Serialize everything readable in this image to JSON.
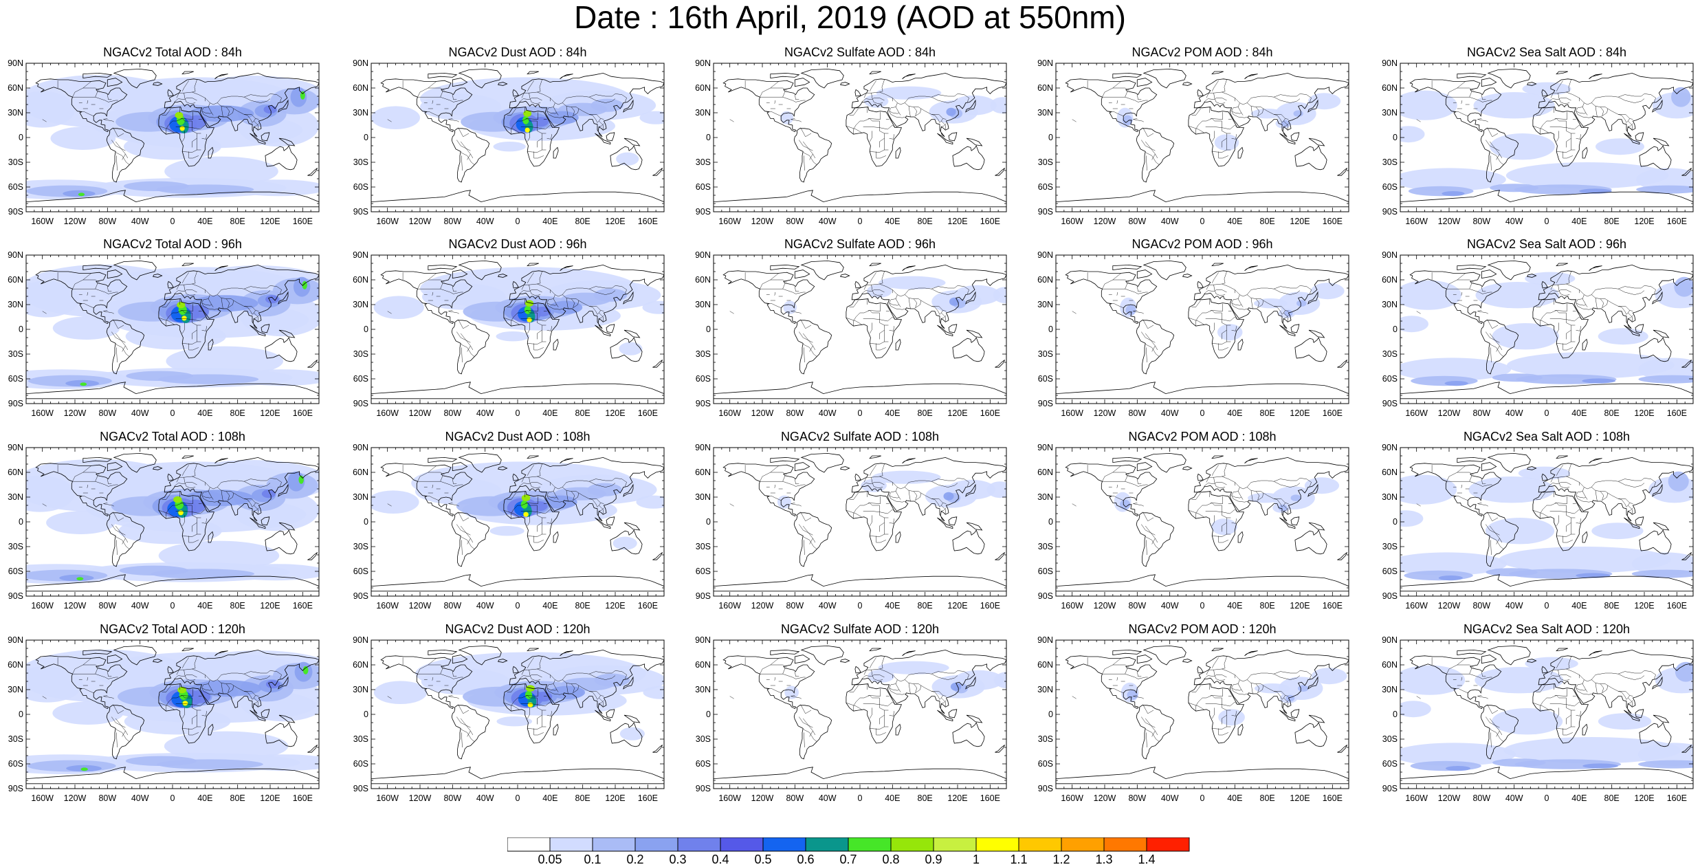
{
  "title": "Date : 16th April, 2019 (AOD at 550nm)",
  "panels": [
    {
      "title": "NGACv2 Total AOD : 84h",
      "species": "total"
    },
    {
      "title": "NGACv2 Dust AOD : 84h",
      "species": "dust"
    },
    {
      "title": "NGACv2 Sulfate AOD : 84h",
      "species": "sulfate"
    },
    {
      "title": "NGACv2 POM AOD : 84h",
      "species": "pom"
    },
    {
      "title": "NGACv2 Sea Salt AOD : 84h",
      "species": "seasalt"
    },
    {
      "title": "NGACv2 Total AOD : 96h",
      "species": "total"
    },
    {
      "title": "NGACv2 Dust AOD : 96h",
      "species": "dust"
    },
    {
      "title": "NGACv2 Sulfate AOD : 96h",
      "species": "sulfate"
    },
    {
      "title": "NGACv2 POM AOD : 96h",
      "species": "pom"
    },
    {
      "title": "NGACv2 Sea Salt AOD : 96h",
      "species": "seasalt"
    },
    {
      "title": "NGACv2 Total AOD : 108h",
      "species": "total"
    },
    {
      "title": "NGACv2 Dust AOD : 108h",
      "species": "dust"
    },
    {
      "title": "NGACv2 Sulfate AOD : 108h",
      "species": "sulfate"
    },
    {
      "title": "NGACv2 POM AOD : 108h",
      "species": "pom"
    },
    {
      "title": "NGACv2 Sea Salt AOD : 108h",
      "species": "seasalt"
    },
    {
      "title": "NGACv2 Total AOD : 120h",
      "species": "total"
    },
    {
      "title": "NGACv2 Dust AOD : 120h",
      "species": "dust"
    },
    {
      "title": "NGACv2 Sulfate AOD : 120h",
      "species": "sulfate"
    },
    {
      "title": "NGACv2 POM AOD : 120h",
      "species": "pom"
    },
    {
      "title": "NGACv2 Sea Salt  AOD : 120h",
      "species": "seasalt"
    }
  ],
  "lat_ticks": [
    "90N",
    "60N",
    "30N",
    "0",
    "30S",
    "60S",
    "90S"
  ],
  "lon_ticks": [
    "160W",
    "120W",
    "80W",
    "40W",
    "0",
    "40E",
    "80E",
    "120E",
    "160E"
  ],
  "lon_tick_values": [
    -160,
    -120,
    -80,
    -40,
    0,
    40,
    80,
    120,
    160
  ],
  "lat_tick_values": [
    90,
    60,
    30,
    0,
    -30,
    -60,
    -90
  ],
  "colorbar": {
    "labels": [
      "0.05",
      "0.1",
      "0.2",
      "0.3",
      "0.4",
      "0.5",
      "0.6",
      "0.7",
      "0.8",
      "0.9",
      "1",
      "1.1",
      "1.2",
      "1.3",
      "1.4"
    ],
    "colors": [
      "#ffffff",
      "#d2dcff",
      "#aabcf6",
      "#8aa2f0",
      "#7081ec",
      "#5559e8",
      "#1464f0",
      "#0a968c",
      "#46e628",
      "#96e60a",
      "#c8f040",
      "#ffff00",
      "#ffc800",
      "#ffa000",
      "#ff7800",
      "#ff2000"
    ]
  }
}
